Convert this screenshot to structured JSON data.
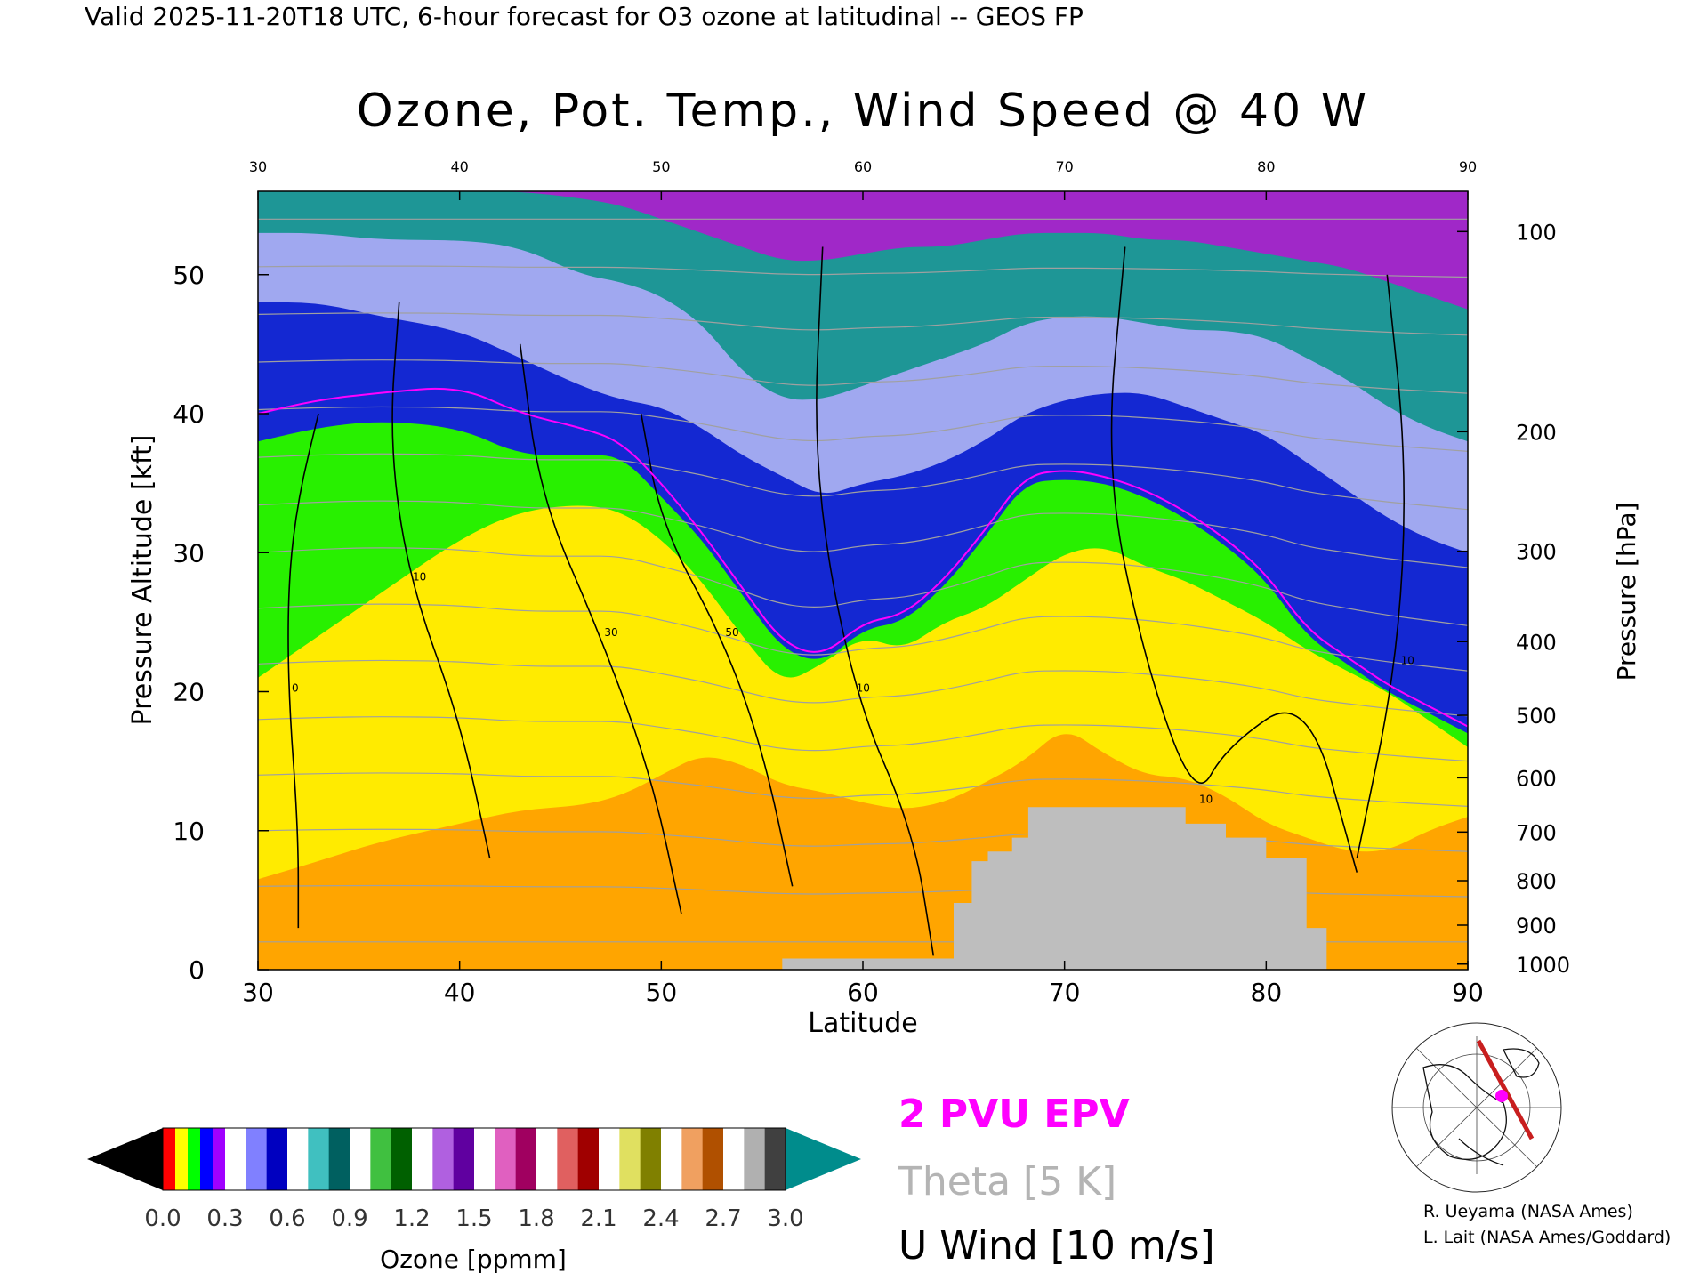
{
  "header": {
    "valid_line": "Valid 2025-11-20T18 UTC, 6-hour forecast for O3 ozone at latitudinal -- GEOS FP"
  },
  "chart_data": {
    "type": "heatmap",
    "title": "Ozone, Pot. Temp., Wind Speed @ 40 W",
    "xlabel": "Latitude",
    "ylabel_left": "Pressure Altitude [kft]",
    "ylabel_right": "Pressure [hPa]",
    "xlim": [
      30,
      90
    ],
    "ylim_kft": [
      0,
      56
    ],
    "x_ticks": [
      30,
      40,
      50,
      60,
      70,
      80,
      90
    ],
    "y_ticks_kft": [
      0,
      10,
      20,
      30,
      40,
      50
    ],
    "pressure_ticks": [
      {
        "hpa": 100,
        "kft": 53.1
      },
      {
        "hpa": 200,
        "kft": 38.7
      },
      {
        "hpa": 300,
        "kft": 30.1
      },
      {
        "hpa": 400,
        "kft": 23.6
      },
      {
        "hpa": 500,
        "kft": 18.3
      },
      {
        "hpa": 600,
        "kft": 13.8
      },
      {
        "hpa": 700,
        "kft": 9.9
      },
      {
        "hpa": 800,
        "kft": 6.4
      },
      {
        "hpa": 900,
        "kft": 3.2
      },
      {
        "hpa": 1000,
        "kft": 0.4
      }
    ],
    "colorbar": {
      "label": "Ozone [ppmm]",
      "tick_labels": [
        "0.0",
        "0.3",
        "0.6",
        "0.9",
        "1.2",
        "1.5",
        "1.8",
        "2.1",
        "2.4",
        "2.7",
        "3.0"
      ],
      "range": [
        0.0,
        3.0
      ]
    },
    "ozone_boundaries": {
      "lat": [
        30,
        33,
        36,
        40,
        43,
        46,
        48,
        50,
        52,
        54,
        56,
        58,
        60,
        62,
        64,
        66,
        68,
        70,
        72,
        74,
        76,
        78,
        80,
        82,
        84,
        86,
        88,
        90
      ],
      "low_to_mid_kft": [
        6.5,
        7.8,
        9.2,
        10.5,
        11.5,
        11.8,
        12.5,
        14,
        15.5,
        14.8,
        13.3,
        12.8,
        12,
        11.5,
        12,
        13.4,
        15,
        17.5,
        15.5,
        14,
        13.8,
        12.5,
        10.5,
        9.5,
        8.5,
        8.5,
        10,
        11
      ],
      "mid_to_tropo_kft": [
        21,
        24,
        27,
        31,
        33,
        33.5,
        33,
        31,
        28,
        24,
        20.5,
        22,
        24,
        23,
        25,
        26,
        28,
        30,
        30.5,
        29,
        28,
        26.5,
        25,
        23,
        21.5,
        20,
        18,
        16
      ],
      "tropo_top_kft": [
        38,
        39,
        39.5,
        39,
        37,
        37,
        37,
        34,
        31,
        27,
        23,
        22,
        24.5,
        25,
        27.5,
        31,
        35,
        35.3,
        35,
        34,
        32.5,
        30.5,
        28,
        24,
        22,
        20,
        18.5,
        17
      ],
      "strat_low_kft": [
        48,
        48,
        47,
        46,
        44,
        42,
        41,
        40.5,
        39,
        37,
        35.5,
        34,
        35,
        35.5,
        36.5,
        38,
        40,
        41,
        41.5,
        41.5,
        40.5,
        39.5,
        38.5,
        36.5,
        34.5,
        32.5,
        31,
        30
      ],
      "strat_mid_kft": [
        53,
        53,
        52.5,
        52.5,
        52,
        50,
        49.5,
        48.5,
        46.5,
        43,
        41,
        41,
        42,
        43,
        44,
        45,
        46.5,
        47,
        47,
        46.5,
        46,
        46,
        45.5,
        44,
        42.5,
        40.5,
        39,
        38
      ],
      "strat_high_kft": [
        56,
        56,
        56,
        56,
        56,
        55.5,
        55,
        54,
        53,
        52,
        51,
        51,
        51.5,
        52,
        52,
        52.5,
        53,
        53,
        53,
        52.5,
        52.5,
        52,
        51.5,
        51,
        50.5,
        49.5,
        48.5,
        47.5
      ]
    },
    "terrain_kft": {
      "lat": [
        56,
        64.5,
        64.5,
        65.4,
        65.4,
        66.2,
        66.2,
        67.4,
        67.4,
        68.2,
        68.2,
        76,
        76,
        78,
        78,
        80,
        80,
        82,
        82,
        83
      ],
      "kft": [
        0.8,
        0.8,
        4.8,
        4.8,
        7.8,
        7.8,
        8.5,
        8.5,
        9.5,
        9.5,
        11.7,
        11.7,
        10.5,
        10.5,
        9.5,
        9.5,
        8.0,
        8.0,
        3.0,
        3.0
      ]
    },
    "u_wind_contours": [
      {
        "label": "0",
        "lat": [
          33,
          32,
          31.5,
          31.5,
          32,
          32
        ],
        "kft": [
          40,
          34,
          28,
          20,
          10,
          3
        ]
      },
      {
        "label": "10",
        "lat": [
          37,
          36.5,
          37.5,
          40,
          41.5
        ],
        "kft": [
          48,
          38,
          28,
          18,
          8
        ]
      },
      {
        "label": "30",
        "lat": [
          43,
          44,
          47,
          49.5,
          51
        ],
        "kft": [
          45,
          34,
          24,
          14,
          4
        ]
      },
      {
        "label": "50",
        "lat": [
          49,
          50,
          53,
          55,
          56.5
        ],
        "kft": [
          40,
          32,
          24,
          16,
          6
        ]
      },
      {
        "label": "10",
        "lat": [
          58,
          57.5,
          59.5,
          62.5,
          63.5
        ],
        "kft": [
          52,
          36,
          20,
          10,
          1
        ]
      },
      {
        "label": "10",
        "lat": [
          73,
          72,
          74,
          76.5,
          78,
          82,
          84.5
        ],
        "kft": [
          52,
          36,
          22,
          12,
          16,
          20,
          7
        ]
      },
      {
        "label": "10",
        "lat": [
          86,
          87,
          86.5,
          84.5
        ],
        "kft": [
          50,
          36,
          22,
          8
        ]
      }
    ],
    "epv_2pvu": {
      "lat": [
        30,
        33,
        36,
        40,
        43,
        46,
        48,
        50,
        52,
        54,
        56,
        58,
        60,
        62,
        64,
        66,
        68,
        70,
        72,
        74,
        76,
        78,
        80,
        82,
        84,
        86,
        88,
        90
      ],
      "kft": [
        40,
        41,
        41.5,
        42,
        40,
        39,
        38,
        35,
        31.5,
        27.5,
        23.5,
        22.5,
        25,
        25.5,
        28,
        31.5,
        35.5,
        36,
        35.5,
        34.5,
        33,
        31,
        28.5,
        24.5,
        22.5,
        20.5,
        19,
        17.5
      ]
    },
    "theta_contours_K": [
      280,
      290,
      300,
      310,
      320,
      330,
      340,
      350,
      360,
      370,
      380,
      390,
      400,
      410,
      420
    ],
    "legend": [
      {
        "label": "2 PVU EPV",
        "color": "#ff00ff"
      },
      {
        "label": "Theta [5 K]",
        "color": "#b4b4b4"
      },
      {
        "label": "U Wind [10 m/s]",
        "color": "#000000"
      }
    ],
    "credits": [
      "R. Ueyama (NASA Ames)",
      "L. Lait (NASA Ames/Goddard)"
    ],
    "colors": {
      "terrain": "#bebebe",
      "epv": "#ff00ff",
      "theta": "#a0a0a0",
      "wind": "#000000",
      "band_low": "#ffa500",
      "band_mid": "#ffeb00",
      "band_tropo": "#28f000",
      "band_tropopause": "#1428d2",
      "band_strat_low": "#a0a8f0",
      "band_strat_mid": "#1e9696",
      "band_strat_high": "#a028c8",
      "colorbar_low": "#000000",
      "colorbar_high": "#008c8c"
    }
  }
}
